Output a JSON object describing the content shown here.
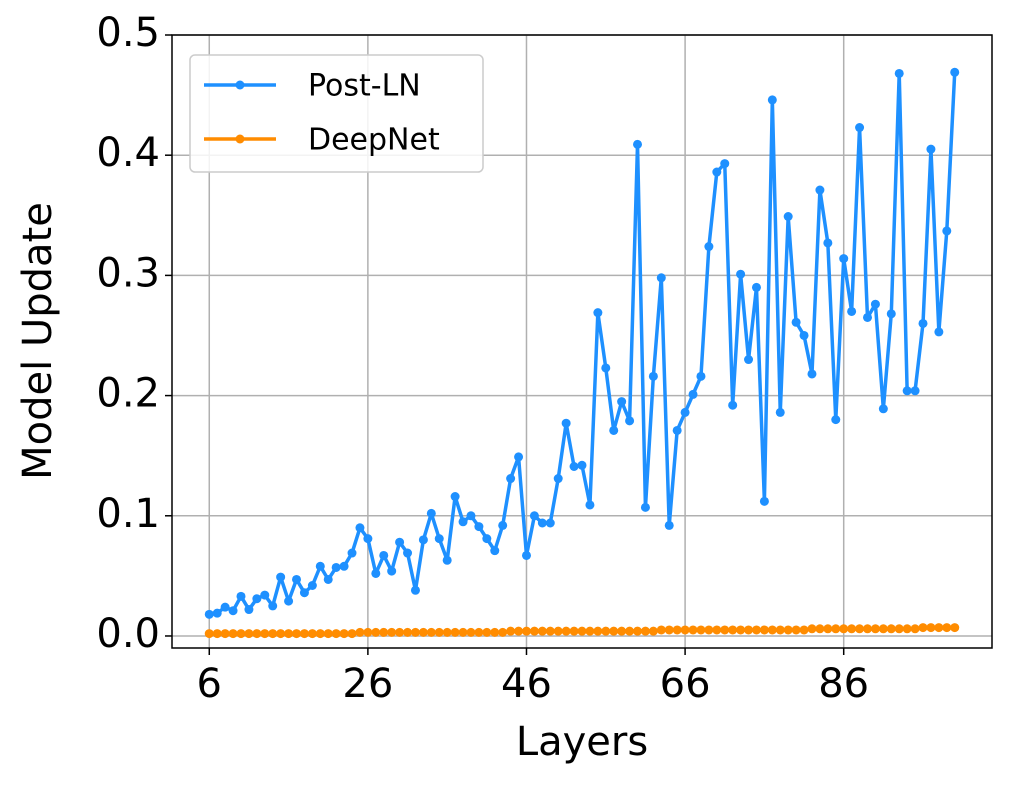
{
  "chart_data": {
    "type": "line",
    "xlabel": "Layers",
    "ylabel": "Model Update",
    "x": [
      6,
      7,
      8,
      9,
      10,
      11,
      12,
      13,
      14,
      15,
      16,
      17,
      18,
      19,
      20,
      21,
      22,
      23,
      24,
      25,
      26,
      27,
      28,
      29,
      30,
      31,
      32,
      33,
      34,
      35,
      36,
      37,
      38,
      39,
      40,
      41,
      42,
      43,
      44,
      45,
      46,
      47,
      48,
      49,
      50,
      51,
      52,
      53,
      54,
      55,
      56,
      57,
      58,
      59,
      60,
      61,
      62,
      63,
      64,
      65,
      66,
      67,
      68,
      69,
      70,
      71,
      72,
      73,
      74,
      75,
      76,
      77,
      78,
      79,
      80,
      81,
      82,
      83,
      84,
      85,
      86,
      87,
      88,
      89,
      90,
      91,
      92,
      93,
      94,
      95,
      96,
      97,
      98,
      99,
      100
    ],
    "series": [
      {
        "name": "Post-LN",
        "color": "#1e90ff",
        "values": [
          0.018,
          0.019,
          0.024,
          0.021,
          0.033,
          0.022,
          0.031,
          0.034,
          0.025,
          0.049,
          0.029,
          0.047,
          0.036,
          0.042,
          0.058,
          0.047,
          0.057,
          0.058,
          0.069,
          0.09,
          0.081,
          0.052,
          0.067,
          0.054,
          0.078,
          0.069,
          0.038,
          0.08,
          0.102,
          0.081,
          0.063,
          0.116,
          0.095,
          0.1,
          0.091,
          0.081,
          0.071,
          0.092,
          0.131,
          0.149,
          0.067,
          0.1,
          0.094,
          0.094,
          0.131,
          0.177,
          0.141,
          0.142,
          0.109,
          0.269,
          0.223,
          0.171,
          0.195,
          0.179,
          0.409,
          0.107,
          0.216,
          0.298,
          0.092,
          0.171,
          0.186,
          0.201,
          0.216,
          0.324,
          0.386,
          0.393,
          0.192,
          0.301,
          0.23,
          0.29,
          0.112,
          0.446,
          0.186,
          0.349,
          0.261,
          0.25,
          0.218,
          0.371,
          0.327,
          0.18,
          0.314,
          0.27,
          0.423,
          0.265,
          0.276,
          0.189,
          0.268,
          0.468,
          0.204,
          0.204,
          0.26,
          0.405,
          0.253,
          0.337,
          0.469
        ]
      },
      {
        "name": "DeepNet",
        "color": "#ff8c00",
        "values": [
          0.002,
          0.002,
          0.002,
          0.002,
          0.002,
          0.002,
          0.002,
          0.002,
          0.002,
          0.002,
          0.002,
          0.002,
          0.002,
          0.002,
          0.002,
          0.002,
          0.002,
          0.002,
          0.002,
          0.003,
          0.003,
          0.003,
          0.003,
          0.003,
          0.003,
          0.003,
          0.003,
          0.003,
          0.003,
          0.003,
          0.003,
          0.003,
          0.003,
          0.003,
          0.003,
          0.003,
          0.003,
          0.003,
          0.004,
          0.004,
          0.004,
          0.004,
          0.004,
          0.004,
          0.004,
          0.004,
          0.004,
          0.004,
          0.004,
          0.004,
          0.004,
          0.004,
          0.004,
          0.004,
          0.004,
          0.004,
          0.004,
          0.005,
          0.005,
          0.005,
          0.005,
          0.005,
          0.005,
          0.005,
          0.005,
          0.005,
          0.005,
          0.005,
          0.005,
          0.005,
          0.005,
          0.005,
          0.005,
          0.005,
          0.005,
          0.005,
          0.006,
          0.006,
          0.006,
          0.006,
          0.006,
          0.006,
          0.006,
          0.006,
          0.006,
          0.006,
          0.006,
          0.006,
          0.006,
          0.006,
          0.007,
          0.007,
          0.007,
          0.007,
          0.007
        ]
      }
    ],
    "xlim": [
      1.3,
      104.7
    ],
    "xticks": [
      6,
      26,
      46,
      66,
      86
    ],
    "ylim": [
      -0.01,
      0.5
    ],
    "yticks": [
      {
        "value": 0,
        "label": "0.0"
      },
      0.1,
      0.2,
      0.3,
      0.4,
      0.5
    ],
    "grid": true,
    "legend": "upper-left"
  }
}
